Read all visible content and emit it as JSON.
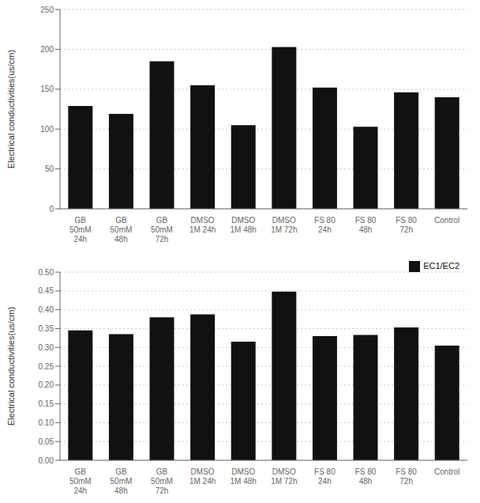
{
  "chart_data": [
    {
      "type": "bar",
      "categories": [
        "GB\n50mM\n24h",
        "GB\n50mM\n48h",
        "GB\n50mM\n72h",
        "DMSO\n1M 24h",
        "DMSO\n1M 48h",
        "DMSO\n1M 72h",
        "FS 80\n24h",
        "FS 80\n48h",
        "FS 80\n72h",
        "Control"
      ],
      "values": [
        129,
        119,
        185,
        155,
        105,
        203,
        152,
        103,
        146,
        140
      ],
      "color": "#111111",
      "y_label": "Electrical conductivities(us/cm)",
      "ylim": [
        0,
        250
      ],
      "yticks": [
        0,
        50,
        100,
        150,
        200,
        250
      ],
      "grid": true
    },
    {
      "type": "bar",
      "categories": [
        "GB\n50mM\n24h",
        "GB\n50mM\n48h",
        "GB\n50mM\n72h",
        "DMSO\n1M 24h",
        "DMSO\n1M 48h",
        "DMSO\n1M 72h",
        "FS 80\n24h",
        "FS 80\n48h",
        "FS 80\n72h",
        "Control"
      ],
      "series": [
        {
          "name": "EC1/EC2",
          "color": "#111111",
          "values": [
            0.345,
            0.335,
            0.38,
            0.388,
            0.315,
            0.448,
            0.33,
            0.333,
            0.353,
            0.305
          ]
        }
      ],
      "y_label": "Electrical conductivities(us/cm)",
      "ylim": [
        0.0,
        0.5
      ],
      "yticks": [
        {
          "value": 0.0,
          "label": "0.00"
        },
        0.05,
        {
          "value": 0.1,
          "label": "0.10"
        },
        0.15,
        {
          "value": 0.2,
          "label": "0.20"
        },
        0.25,
        {
          "value": 0.3,
          "label": "0.30"
        },
        0.35,
        {
          "value": 0.4,
          "label": "0.40"
        },
        0.45,
        {
          "value": 0.5,
          "label": "0.50"
        }
      ],
      "grid": true,
      "legend": "upper right"
    }
  ]
}
